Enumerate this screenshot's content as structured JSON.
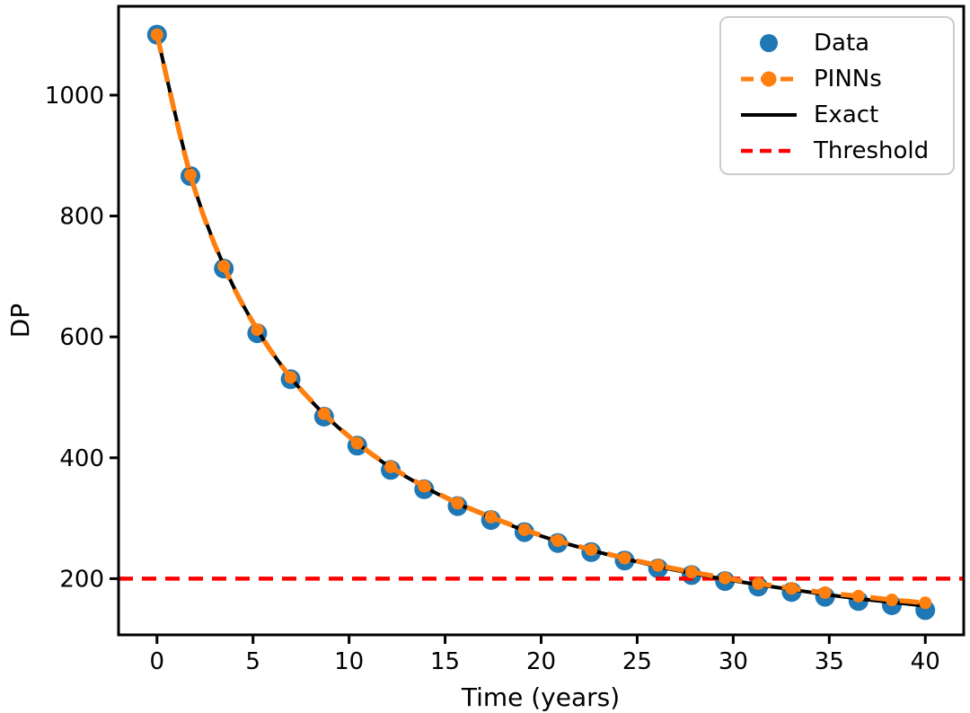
{
  "figure": {
    "background_color": "#ffffff",
    "text_color": "#000000",
    "spine_color": "#000000"
  },
  "chart_data": {
    "type": "line",
    "title": "",
    "xlabel": "Time (years)",
    "ylabel": "DP",
    "xlim": [
      -2,
      42
    ],
    "ylim": [
      107,
      1147
    ],
    "xticks": [
      0,
      5,
      10,
      15,
      20,
      25,
      30,
      35,
      40
    ],
    "yticks": [
      200,
      400,
      600,
      800,
      1000
    ],
    "grid": false,
    "legend_position": "upper right",
    "x": [
      0,
      1.74,
      3.48,
      5.22,
      6.96,
      8.7,
      10.43,
      12.17,
      13.91,
      15.65,
      17.39,
      19.13,
      20.87,
      22.61,
      24.35,
      26.09,
      27.83,
      29.57,
      31.3,
      33.04,
      34.78,
      36.52,
      38.26,
      40
    ],
    "series": [
      {
        "name": "Data",
        "kind": "scatter",
        "color": "#1f77b4",
        "marker": "circle",
        "marker_radius": 11,
        "values": [
          1100,
          866,
          713,
          606,
          530,
          468,
          420,
          380,
          348,
          320,
          297,
          277,
          259,
          244,
          230,
          217,
          206,
          196,
          187,
          178,
          170,
          163,
          156,
          148
        ]
      },
      {
        "name": "PINNs",
        "kind": "line-marker",
        "color": "#ff7f0e",
        "linestyle": "dashed",
        "line_width": 5.5,
        "dash": "21 12",
        "marker": "circle",
        "marker_radius": 7,
        "values": [
          1100,
          868,
          717,
          612,
          533,
          473,
          424,
          385,
          353,
          325,
          302,
          281,
          263,
          248,
          234,
          222,
          211,
          201,
          192,
          184,
          177,
          171,
          165,
          160
        ]
      },
      {
        "name": "Exact",
        "kind": "line",
        "color": "#000000",
        "linestyle": "solid",
        "line_width": 4,
        "values": [
          1100,
          869,
          718,
          612,
          533,
          472,
          424,
          384,
          352,
          324,
          301,
          280,
          262,
          247,
          233,
          220,
          209,
          199,
          190,
          182,
          174,
          167,
          161,
          155
        ]
      },
      {
        "name": "Threshold",
        "kind": "hline",
        "color": "#ff0000",
        "linestyle": "dashed",
        "line_width": 4.5,
        "dash": "16 10",
        "value": 200
      }
    ]
  }
}
